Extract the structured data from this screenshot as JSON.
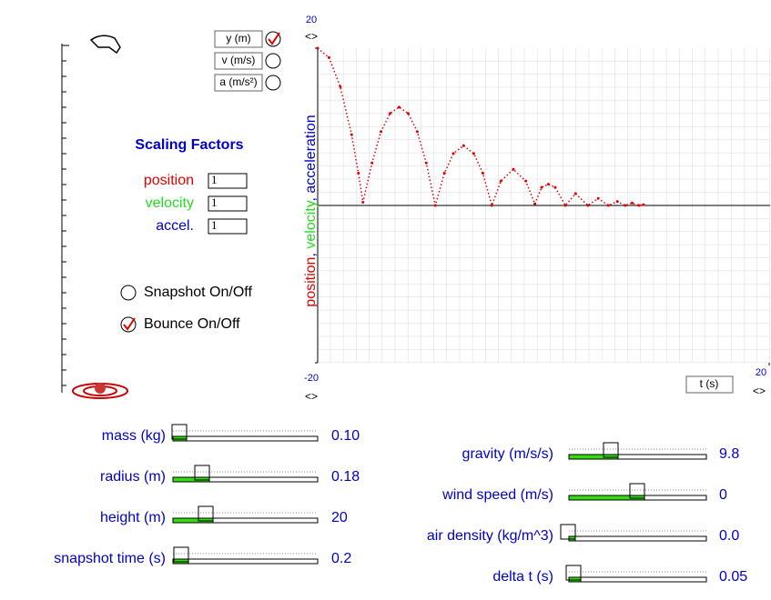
{
  "checkboxes": [
    {
      "label": "y (m)",
      "checked": true
    },
    {
      "label": "v (m/s)",
      "checked": false
    },
    {
      "label": "a (m/s²)",
      "checked": false
    }
  ],
  "scaling": {
    "title": "Scaling Factors",
    "rows": [
      {
        "label": "position",
        "value": "1",
        "color": "#e00000"
      },
      {
        "label": "velocity",
        "value": "1",
        "color": "#22dd22"
      },
      {
        "label": "accel.",
        "value": "1",
        "color": "#0000cc"
      }
    ]
  },
  "toggles": [
    {
      "label": "Snapshot On/Off",
      "checked": false
    },
    {
      "label": "Bounce On/Off",
      "checked": true
    }
  ],
  "chart_data": {
    "type": "scatter",
    "ylabel_parts": [
      {
        "text": "position",
        "color": "#e00000"
      },
      {
        "text": ", ",
        "color": "#0000cc"
      },
      {
        "text": "velocity",
        "color": "#22dd22"
      },
      {
        "text": ", ",
        "color": "#0000cc"
      },
      {
        "text": "acceleration",
        "color": "#0000cc"
      }
    ],
    "xlabel": "t (s)",
    "xlim": [
      0,
      20
    ],
    "ylim": [
      -20,
      20
    ],
    "xticks": [
      20
    ],
    "yticks": [
      -20,
      20
    ],
    "series": [
      {
        "name": "y (m)",
        "color": "#e00000",
        "x": [
          0,
          0.5,
          1.0,
          1.5,
          1.8,
          2.0,
          2.4,
          2.8,
          3.2,
          3.6,
          4.0,
          4.4,
          4.8,
          5.2,
          5.6,
          6.0,
          6.45,
          6.9,
          7.3,
          7.7,
          8.1,
          8.65,
          9.2,
          9.6,
          9.9,
          10.2,
          10.5,
          10.95,
          11.4,
          11.95,
          12.4,
          12.85,
          13.25,
          13.6,
          13.9,
          14.2,
          14.4
        ],
        "y": [
          20,
          18.8,
          15.1,
          9.0,
          4.1,
          0.4,
          5.4,
          9.4,
          11.7,
          12.5,
          11.7,
          9.4,
          5.4,
          0.0,
          4.1,
          6.6,
          7.6,
          6.6,
          4.1,
          0.0,
          3.1,
          4.6,
          3.1,
          0.2,
          2.3,
          2.7,
          2.3,
          0.0,
          1.5,
          0.0,
          0.9,
          0.0,
          0.5,
          0.0,
          0.3,
          0.0,
          0.1
        ]
      }
    ]
  },
  "sliders": [
    {
      "label": "mass (kg)",
      "value": "0.10"
    },
    {
      "label": "radius (m)",
      "value": "0.18"
    },
    {
      "label": "height (m)",
      "value": "20"
    },
    {
      "label": "snapshot time (s)",
      "value": "0.2"
    },
    {
      "label": "gravity (m/s/s)",
      "value": "9.8"
    },
    {
      "label": "wind speed (m/s)",
      "value": "0"
    },
    {
      "label": "air density (kg/m^3)",
      "value": "0.0"
    },
    {
      "label": "delta t (s)",
      "value": "0.05"
    }
  ]
}
